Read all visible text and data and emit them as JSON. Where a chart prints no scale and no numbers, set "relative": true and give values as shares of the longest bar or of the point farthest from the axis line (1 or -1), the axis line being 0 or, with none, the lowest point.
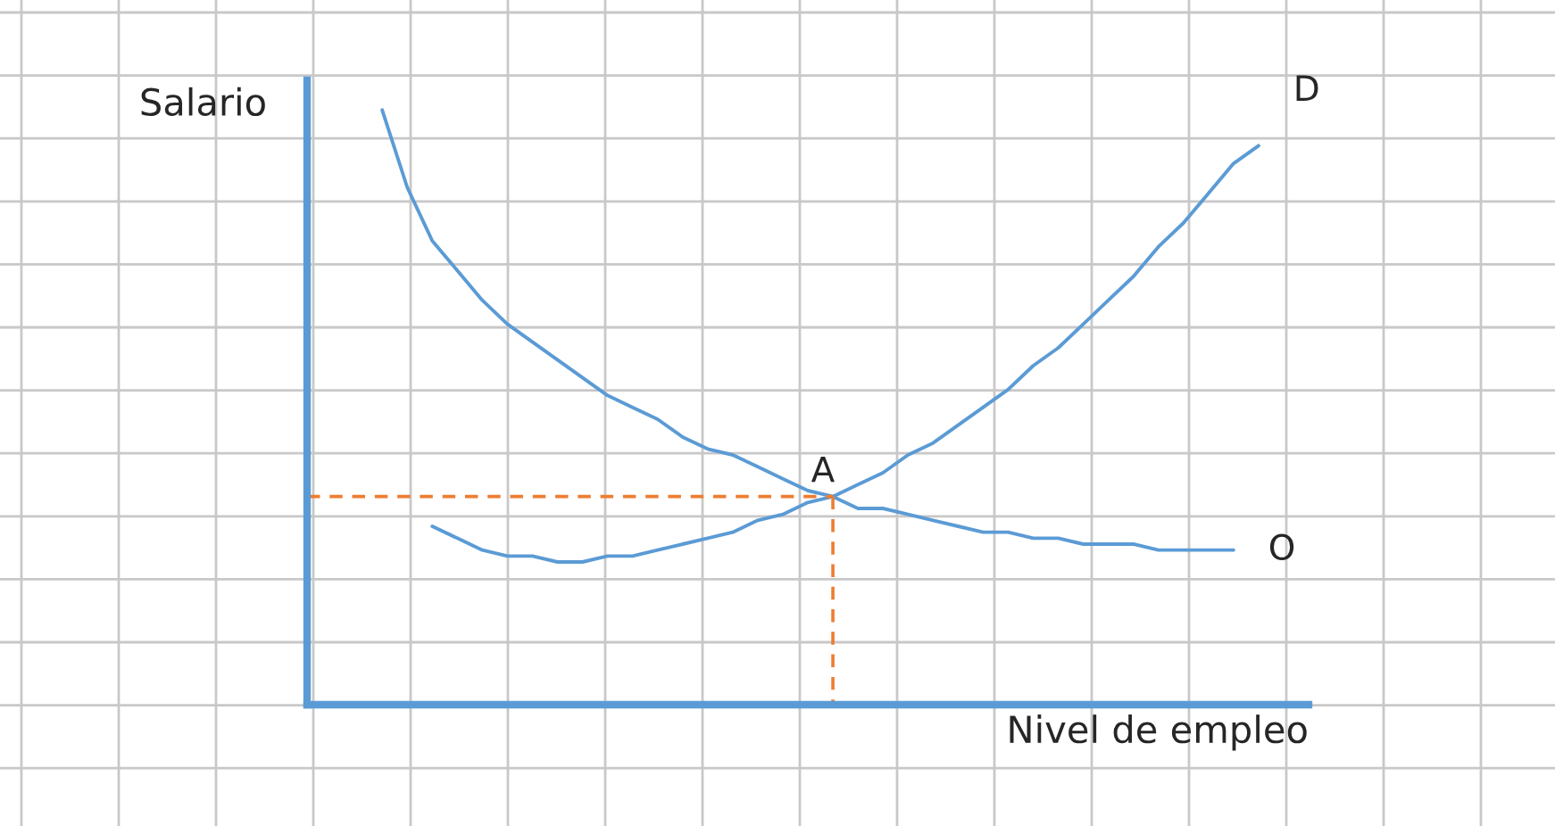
{
  "chart_data": {
    "type": "line",
    "relative": true,
    "xlabel": "Nivel de empleo",
    "ylabel": "Salario",
    "grid": true,
    "legend": false,
    "marker": "none",
    "categories": [
      null,
      null,
      null,
      null,
      null,
      null,
      null,
      null,
      null,
      null,
      null,
      null,
      null,
      null,
      null,
      null,
      null,
      null,
      null,
      null,
      null,
      null,
      null,
      null,
      null,
      null,
      null,
      null,
      null,
      null,
      null,
      null,
      null,
      null,
      null,
      null,
      null,
      null,
      null,
      null,
      null
    ],
    "series": [
      {
        "name": "O",
        "color": "#5b9bd5",
        "values": [
          null,
          null,
          null,
          1.0,
          0.87,
          0.78,
          0.73,
          0.68,
          0.64,
          0.61,
          0.58,
          0.55,
          0.52,
          0.5,
          0.48,
          0.45,
          0.43,
          0.42,
          0.4,
          0.38,
          0.36,
          0.35,
          0.33,
          0.33,
          0.32,
          0.31,
          0.3,
          0.29,
          0.29,
          0.28,
          0.28,
          0.27,
          0.27,
          0.27,
          0.26,
          0.26,
          0.26,
          0.26,
          null,
          null,
          null
        ]
      },
      {
        "name": "D",
        "color": "#5b9bd5",
        "values": [
          null,
          null,
          null,
          null,
          null,
          0.3,
          0.28,
          0.26,
          0.25,
          0.25,
          0.24,
          0.24,
          0.25,
          0.25,
          0.26,
          0.27,
          0.28,
          0.29,
          0.31,
          0.32,
          0.34,
          0.35,
          0.37,
          0.39,
          0.42,
          0.44,
          0.47,
          0.5,
          0.53,
          0.57,
          0.6,
          0.64,
          0.68,
          0.72,
          0.77,
          0.81,
          0.86,
          0.91,
          0.94,
          null,
          null
        ]
      }
    ],
    "annotations": [
      "A"
    ]
  }
}
